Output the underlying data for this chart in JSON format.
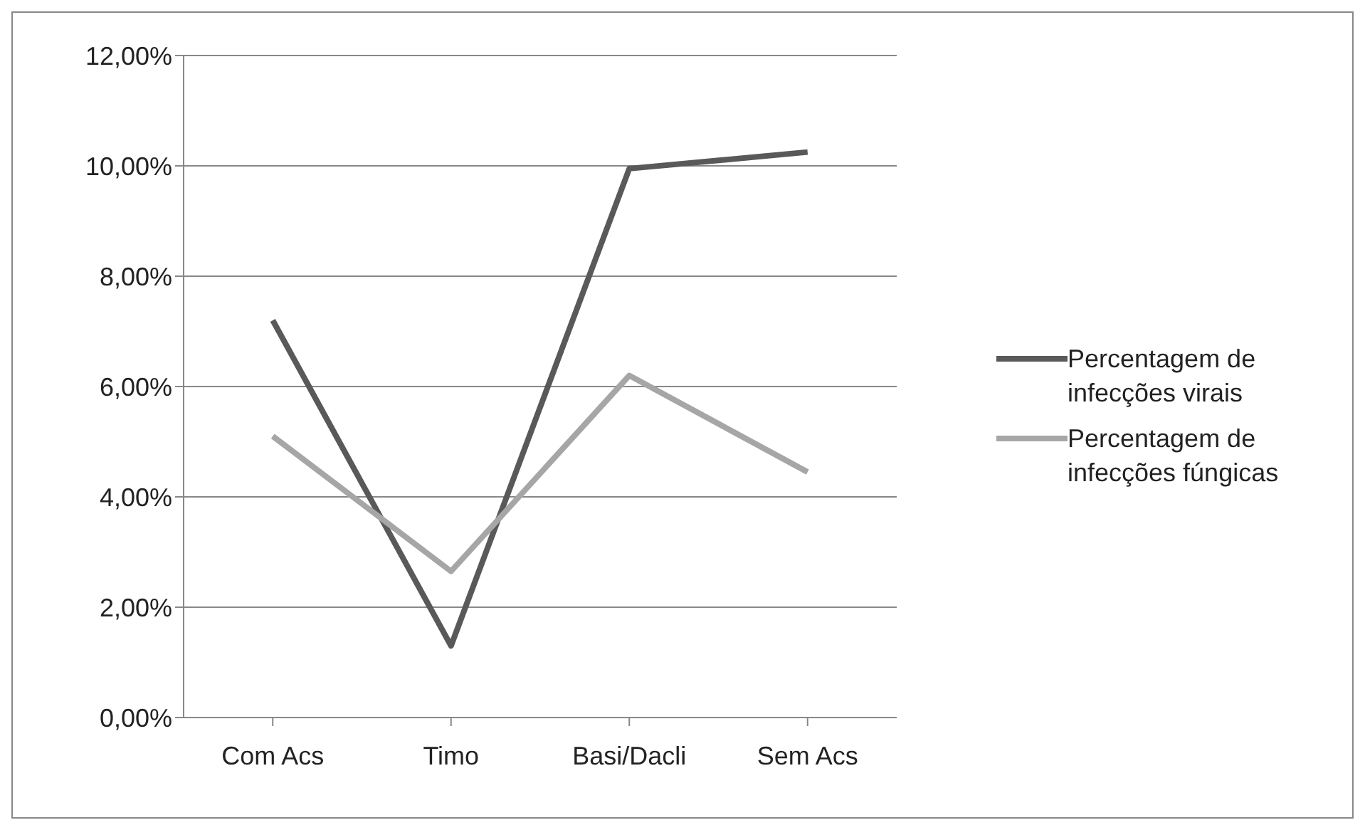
{
  "chart_data": {
    "type": "line",
    "categories": [
      "Com Acs",
      "Timo",
      "Basi/Dacli",
      "Sem Acs"
    ],
    "series": [
      {
        "name": "Percentagem de infecções virais",
        "color": "#595959",
        "values": [
          7.2,
          1.3,
          9.95,
          10.25
        ]
      },
      {
        "name": "Percentagem de infecções fúngicas",
        "color": "#a6a6a6",
        "values": [
          5.1,
          2.65,
          6.2,
          4.45
        ]
      }
    ],
    "ylim": [
      0,
      12
    ],
    "yticks": [
      {
        "value": 0,
        "label": "0,00%"
      },
      {
        "value": 2,
        "label": "2,00%"
      },
      {
        "value": 4,
        "label": "4,00%"
      },
      {
        "value": 6,
        "label": "6,00%"
      },
      {
        "value": 8,
        "label": "8,00%"
      },
      {
        "value": 10,
        "label": "10,00%"
      },
      {
        "value": 12,
        "label": "12,00%"
      }
    ],
    "grid": "y",
    "legend": "right",
    "marker": "none",
    "line_style": "solid"
  }
}
